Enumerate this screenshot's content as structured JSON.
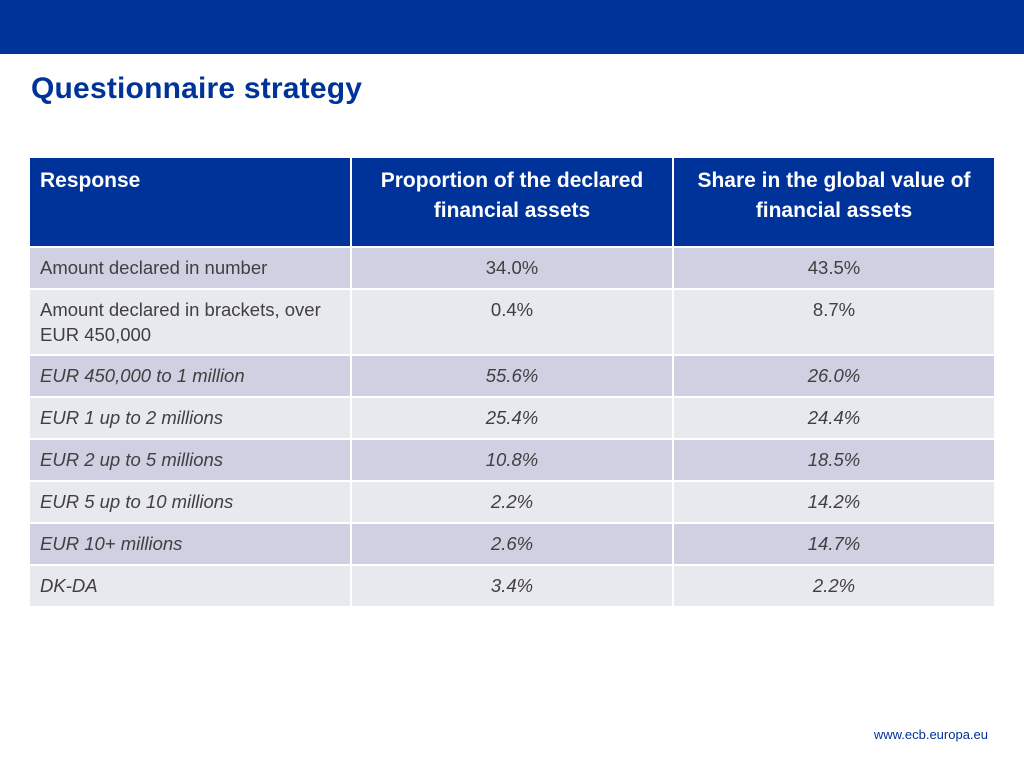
{
  "title": "Questionnaire strategy",
  "colors": {
    "brand_blue": "#003399",
    "row_dark": "#cfd1e2",
    "row_light": "#e8e9ef",
    "text": "#404040"
  },
  "table": {
    "headers": [
      "Response",
      "Proportion of the declared financial assets",
      "Share in the global value of financial assets"
    ],
    "rows": [
      {
        "response": "Amount declared in number",
        "proportion": "34.0%",
        "share": "43.5%"
      },
      {
        "response": "Amount declared in brackets, over EUR 450,000",
        "proportion": "0.4%",
        "share": "8.7%"
      },
      {
        "response": "EUR 450,000 to 1 million",
        "proportion": "55.6%",
        "share": "26.0%"
      },
      {
        "response": "EUR 1 up to 2 millions",
        "proportion": "25.4%",
        "share": "24.4%"
      },
      {
        "response": "EUR 2 up to 5 millions",
        "proportion": "10.8%",
        "share": "18.5%"
      },
      {
        "response": "EUR 5 up to 10 millions",
        "proportion": "2.2%",
        "share": "14.2%"
      },
      {
        "response": "EUR 10+ millions",
        "proportion": "2.6%",
        "share": "14.7%"
      },
      {
        "response": "DK-DA",
        "proportion": "3.4%",
        "share": "2.2%"
      }
    ]
  },
  "footer": {
    "url": "www.ecb.europa.eu"
  }
}
